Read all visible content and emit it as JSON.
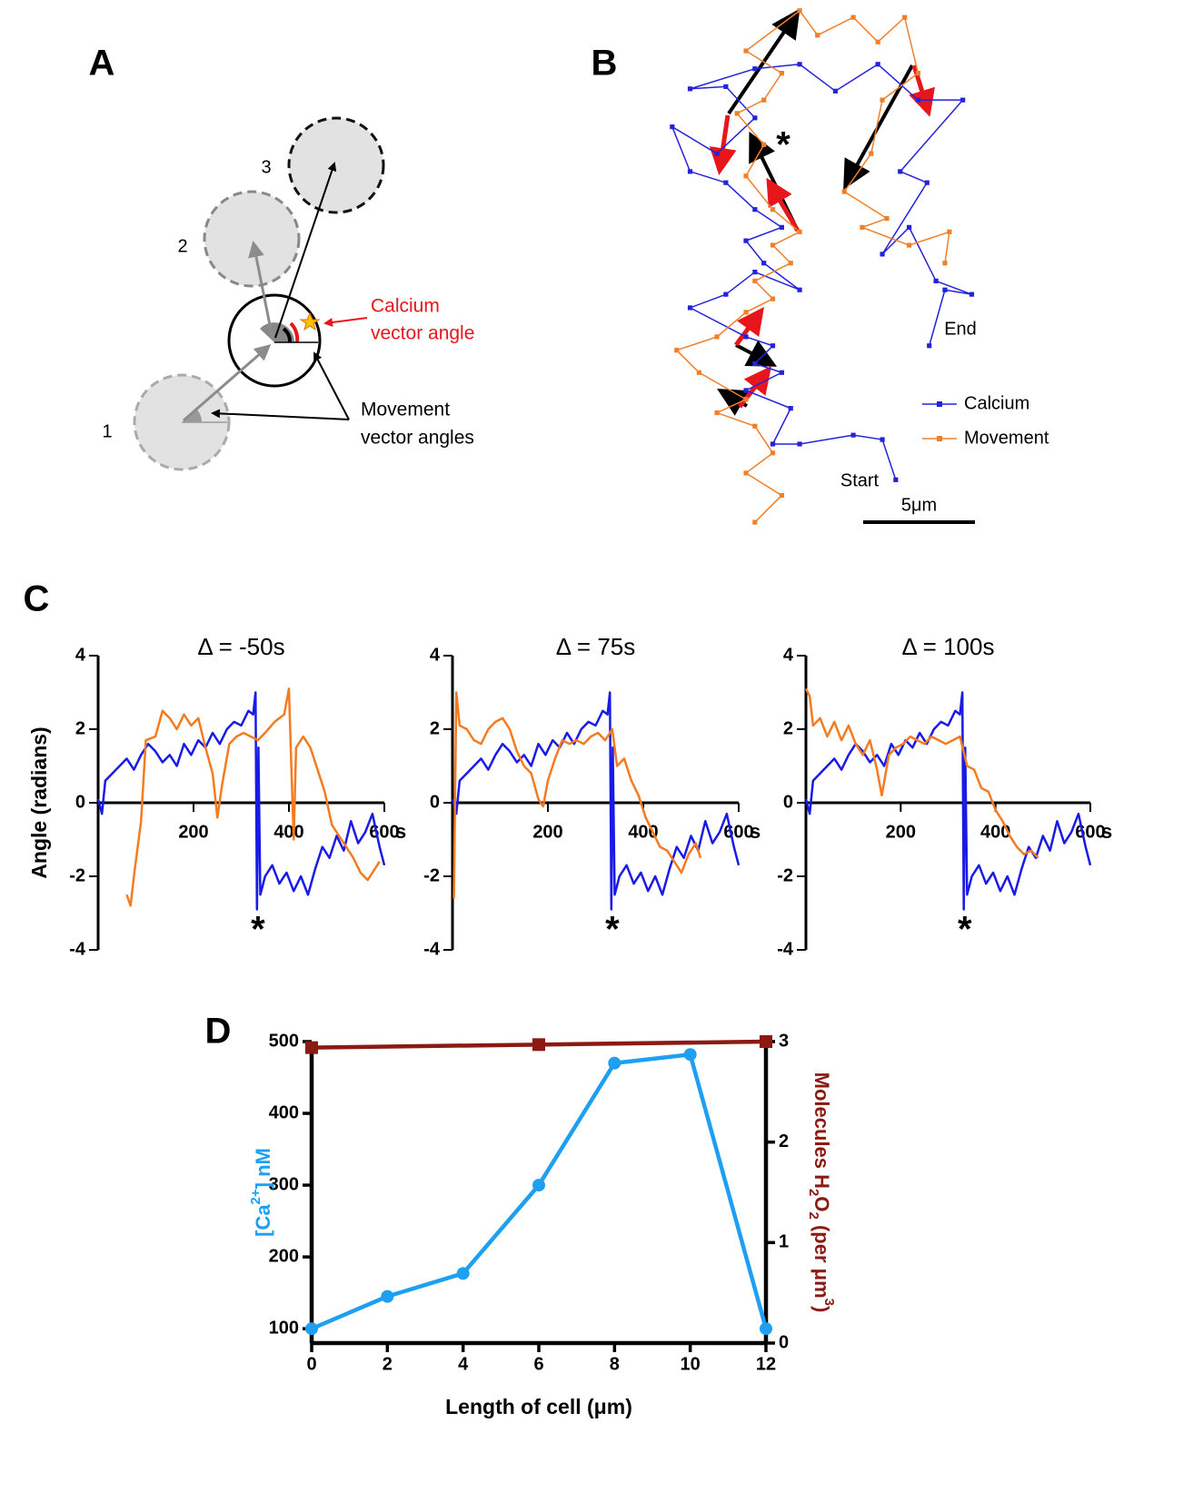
{
  "diagram": {
    "panel": "A",
    "circle_labels": [
      "1",
      "2",
      "3"
    ],
    "calcium_label": [
      "Calcium",
      "vector angle"
    ],
    "movement_label": [
      "Movement",
      "vector angles"
    ]
  },
  "chart_data": [
    {
      "type": "line",
      "panel": "B",
      "series": [
        {
          "name": "Calcium",
          "color": "#2323dc",
          "marker": "square",
          "x": [
            10.4,
            9.8,
            8.5,
            6.1,
            4.9,
            5.7,
            3.7,
            5.3,
            4.1,
            4.9,
            3.7,
            1.2,
            2.8,
            4.1,
            6.1,
            4.5,
            3.7,
            5.3,
            4.1,
            2.8,
            1.2,
            0.4,
            2.4,
            4.1,
            2.8,
            1.2,
            4.1,
            6.1,
            7.7,
            9.6,
            11.4,
            13.4,
            10.6,
            11.8,
            9.8,
            11.0,
            12.2,
            13.8,
            12.6,
            11.9
          ],
          "values": [
            2.1,
            3.9,
            4.1,
            3.7,
            3.7,
            5.3,
            6.1,
            6.9,
            7.3,
            8.1,
            8.5,
            9.8,
            10.4,
            11.4,
            10.6,
            11.8,
            12.8,
            13.4,
            14.2,
            15.4,
            15.9,
            17.9,
            16.7,
            18.3,
            19.7,
            19.6,
            20.5,
            20.7,
            19.5,
            20.7,
            19.1,
            19.1,
            15.9,
            15.4,
            12.2,
            13.4,
            11.0,
            10.4,
            10.6,
            8.1
          ]
        },
        {
          "name": "Movement",
          "color": "#f07f2a",
          "marker": "square",
          "x": [
            4.1,
            5.3,
            3.7,
            4.9,
            4.1,
            2.4,
            3.7,
            1.6,
            0.6,
            2.4,
            3.7,
            4.9,
            4.1,
            5.7,
            4.9,
            6.1,
            4.9,
            3.7,
            4.5,
            3.3,
            4.5,
            5.3,
            3.7,
            6.1,
            6.9,
            8.5,
            9.6,
            10.8,
            11.4,
            9.8,
            9.3,
            8.1,
            10.0,
            8.9,
            11.0,
            12.8,
            12.6
          ],
          "values": [
            0.2,
            1.4,
            2.4,
            3.3,
            4.5,
            5.1,
            5.7,
            6.9,
            7.9,
            8.5,
            9.6,
            10.2,
            11.0,
            11.8,
            12.6,
            13.2,
            14.2,
            15.7,
            17.1,
            18.5,
            19.1,
            20.3,
            21.3,
            23.1,
            22.0,
            22.8,
            21.7,
            22.8,
            20.3,
            19.1,
            16.7,
            15.0,
            13.8,
            13.4,
            12.6,
            13.2,
            11.8
          ]
        }
      ],
      "annotations": [
        "*",
        "Start",
        "End"
      ],
      "scale_bar": {
        "length": 5,
        "label": "5μm"
      }
    },
    {
      "type": "line",
      "panel": "C",
      "title": "Δ = -50s",
      "ylabel": "Angle (radians)",
      "xlabel": "s",
      "xlim": [
        0,
        600
      ],
      "ylim": [
        -4,
        4
      ],
      "xticks": [
        200,
        400,
        600
      ],
      "yticks": [
        -4,
        -2,
        0,
        2,
        4
      ],
      "annotations": [
        "*"
      ],
      "series": [
        {
          "color": "#1a1ae6",
          "x": [
            0,
            8,
            15,
            30,
            45,
            60,
            75,
            90,
            105,
            120,
            135,
            150,
            165,
            180,
            195,
            210,
            225,
            240,
            255,
            270,
            285,
            300,
            315,
            325,
            330,
            333,
            336,
            340,
            350,
            365,
            380,
            395,
            410,
            425,
            440,
            455,
            470,
            485,
            500,
            515,
            530,
            545,
            560,
            575,
            590,
            600
          ],
          "values": [
            0.1,
            -0.3,
            0.6,
            0.8,
            1.0,
            1.2,
            0.9,
            1.3,
            1.6,
            1.4,
            1.1,
            1.3,
            1.0,
            1.6,
            1.3,
            1.7,
            1.5,
            1.9,
            1.6,
            2.0,
            2.2,
            2.1,
            2.5,
            2.4,
            3.0,
            -2.9,
            1.5,
            -2.5,
            -2.0,
            -1.7,
            -2.2,
            -1.9,
            -2.4,
            -2.0,
            -2.5,
            -1.8,
            -1.2,
            -1.5,
            -0.9,
            -1.3,
            -0.5,
            -1.1,
            -0.8,
            -0.3,
            -1.2,
            -1.7
          ]
        },
        {
          "color": "#f47b20",
          "x": [
            60,
            68,
            75,
            90,
            100,
            120,
            135,
            150,
            165,
            180,
            195,
            210,
            225,
            240,
            250,
            260,
            275,
            290,
            305,
            320,
            335,
            350,
            370,
            390,
            400,
            405,
            410,
            415,
            430,
            445,
            460,
            475,
            490,
            505,
            520,
            535,
            550,
            565,
            580,
            590
          ],
          "values": [
            -2.5,
            -2.8,
            -2.0,
            -0.5,
            1.7,
            1.8,
            2.5,
            2.3,
            2.0,
            2.4,
            2.1,
            2.3,
            1.5,
            0.8,
            -0.4,
            0.5,
            1.6,
            1.8,
            1.9,
            1.8,
            1.7,
            1.9,
            2.2,
            2.4,
            3.1,
            1.0,
            -1.0,
            1.5,
            1.8,
            1.5,
            0.9,
            0.3,
            -0.6,
            -0.9,
            -1.2,
            -1.5,
            -1.9,
            -2.1,
            -1.8,
            -1.6
          ]
        }
      ]
    },
    {
      "type": "line",
      "title": "Δ = 75s",
      "xlabel": "s",
      "xlim": [
        0,
        600
      ],
      "ylim": [
        -4,
        4
      ],
      "xticks": [
        200,
        400,
        600
      ],
      "yticks": [
        -4,
        -2,
        0,
        2,
        4
      ],
      "annotations": [
        "*"
      ],
      "series": [
        {
          "color": "#1a1ae6",
          "x": [
            0,
            8,
            15,
            30,
            45,
            60,
            75,
            90,
            105,
            120,
            135,
            150,
            165,
            180,
            195,
            210,
            225,
            240,
            255,
            270,
            285,
            300,
            315,
            325,
            330,
            333,
            336,
            340,
            350,
            365,
            380,
            395,
            410,
            425,
            440,
            455,
            470,
            485,
            500,
            515,
            530,
            545,
            560,
            575,
            590,
            600
          ],
          "values": [
            0.1,
            -0.3,
            0.6,
            0.8,
            1.0,
            1.2,
            0.9,
            1.3,
            1.6,
            1.4,
            1.1,
            1.3,
            1.0,
            1.6,
            1.3,
            1.7,
            1.5,
            1.9,
            1.6,
            2.0,
            2.2,
            2.1,
            2.5,
            2.4,
            3.0,
            -2.9,
            1.5,
            -2.5,
            -2.0,
            -1.7,
            -2.2,
            -1.9,
            -2.4,
            -2.0,
            -2.5,
            -1.8,
            -1.2,
            -1.5,
            -0.9,
            -1.3,
            -0.5,
            -1.1,
            -0.8,
            -0.3,
            -1.2,
            -1.7
          ]
        },
        {
          "color": "#f47b20",
          "x": [
            3,
            8,
            15,
            30,
            45,
            60,
            75,
            90,
            105,
            120,
            135,
            150,
            165,
            180,
            190,
            200,
            215,
            230,
            245,
            260,
            275,
            290,
            305,
            320,
            335,
            345,
            360,
            375,
            390,
            405,
            420,
            435,
            450,
            465,
            480,
            495,
            510,
            520
          ],
          "values": [
            -2.6,
            3.0,
            2.1,
            2.0,
            1.7,
            1.6,
            2.0,
            2.2,
            2.3,
            2.0,
            1.4,
            1.0,
            0.8,
            0.1,
            -0.1,
            0.6,
            1.2,
            1.7,
            1.6,
            1.7,
            1.6,
            1.8,
            1.9,
            1.7,
            2.0,
            1.0,
            1.2,
            0.6,
            0.2,
            -0.4,
            -0.8,
            -1.2,
            -1.3,
            -1.6,
            -1.9,
            -1.4,
            -1.1,
            -1.5
          ]
        }
      ]
    },
    {
      "type": "line",
      "title": "Δ = 100s",
      "xlabel": "s",
      "xlim": [
        0,
        600
      ],
      "ylim": [
        -4,
        4
      ],
      "xticks": [
        200,
        400,
        600
      ],
      "yticks": [
        -4,
        -2,
        0,
        2,
        4
      ],
      "annotations": [
        "*"
      ],
      "series": [
        {
          "color": "#1a1ae6",
          "x": [
            0,
            8,
            15,
            30,
            45,
            60,
            75,
            90,
            105,
            120,
            135,
            150,
            165,
            180,
            195,
            210,
            225,
            240,
            255,
            270,
            285,
            300,
            315,
            325,
            330,
            333,
            336,
            340,
            350,
            365,
            380,
            395,
            410,
            425,
            440,
            455,
            470,
            485,
            500,
            515,
            530,
            545,
            560,
            575,
            590,
            600
          ],
          "values": [
            0.1,
            -0.3,
            0.6,
            0.8,
            1.0,
            1.2,
            0.9,
            1.3,
            1.6,
            1.4,
            1.1,
            1.3,
            1.0,
            1.6,
            1.3,
            1.7,
            1.5,
            1.9,
            1.6,
            2.0,
            2.2,
            2.1,
            2.5,
            2.4,
            3.0,
            -2.9,
            1.5,
            -2.5,
            -2.0,
            -1.7,
            -2.2,
            -1.9,
            -2.4,
            -2.0,
            -2.5,
            -1.8,
            -1.2,
            -1.5,
            -0.9,
            -1.3,
            -0.5,
            -1.1,
            -0.8,
            -0.3,
            -1.2,
            -1.7
          ]
        },
        {
          "color": "#f47b20",
          "x": [
            0,
            8,
            15,
            30,
            45,
            60,
            75,
            90,
            105,
            120,
            135,
            150,
            160,
            175,
            190,
            205,
            220,
            235,
            250,
            265,
            280,
            295,
            310,
            325,
            340,
            355,
            370,
            385,
            400,
            415,
            430,
            445,
            460,
            475,
            490
          ],
          "values": [
            3.1,
            2.9,
            2.1,
            2.3,
            1.8,
            2.2,
            1.7,
            2.1,
            1.6,
            1.3,
            1.7,
            0.9,
            0.2,
            1.3,
            1.5,
            1.6,
            1.8,
            1.7,
            1.6,
            1.8,
            1.7,
            1.6,
            1.7,
            1.8,
            1.0,
            0.9,
            0.4,
            0.3,
            -0.2,
            -0.5,
            -0.9,
            -1.2,
            -1.4,
            -1.3,
            -1.5
          ]
        }
      ]
    },
    {
      "type": "line",
      "panel": "D",
      "xlabel": "Length of cell (μm)",
      "ylabel": [
        "[Ca",
        "2+",
        "] nM"
      ],
      "y2label": [
        "Molecules H",
        "2",
        "O",
        "2",
        " (per μm",
        "3",
        ")"
      ],
      "xlim": [
        0,
        12
      ],
      "ylim": [
        80,
        500
      ],
      "y2lim": [
        0,
        3
      ],
      "xticks": [
        0,
        2,
        4,
        6,
        8,
        10,
        12
      ],
      "yticks": [
        100,
        200,
        300,
        400,
        500
      ],
      "y2ticks": [
        0,
        1,
        2,
        3
      ],
      "series": [
        {
          "color": "#1e9ff2",
          "marker": "circle",
          "x": [
            0,
            2,
            4,
            6,
            8,
            10,
            12
          ],
          "values": [
            100,
            145,
            177,
            300,
            470,
            482,
            100
          ]
        },
        {
          "color": "#8b1a12",
          "marker": "square",
          "axis": "y2",
          "x": [
            0,
            6,
            12
          ],
          "values": [
            2.94,
            2.97,
            3.0
          ]
        }
      ]
    }
  ]
}
